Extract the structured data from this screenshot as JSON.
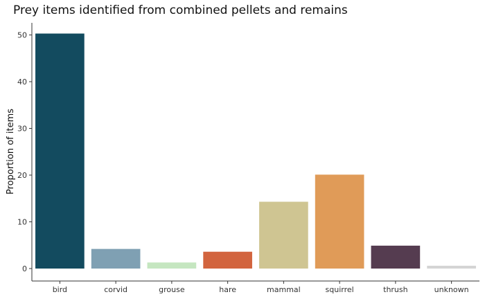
{
  "chart_data": {
    "type": "bar",
    "title": "Prey items identified from combined pellets and remains",
    "xlabel": "",
    "ylabel": "Proportion of items",
    "categories": [
      "bird",
      "corvid",
      "grouse",
      "hare",
      "mammal",
      "squirrel",
      "thrush",
      "unknown"
    ],
    "values": [
      50.3,
      4.2,
      1.3,
      3.6,
      14.3,
      20.1,
      4.9,
      0.6
    ],
    "colors": [
      "#134b5f",
      "#7fa0b3",
      "#c5e6c0",
      "#d2643e",
      "#cfc592",
      "#e09b58",
      "#553c50",
      "#d4d4d4"
    ],
    "ylim": [
      0,
      52.8
    ],
    "yticks": [
      0,
      10,
      20,
      30,
      40,
      50
    ],
    "grid": false,
    "legend": "none"
  }
}
